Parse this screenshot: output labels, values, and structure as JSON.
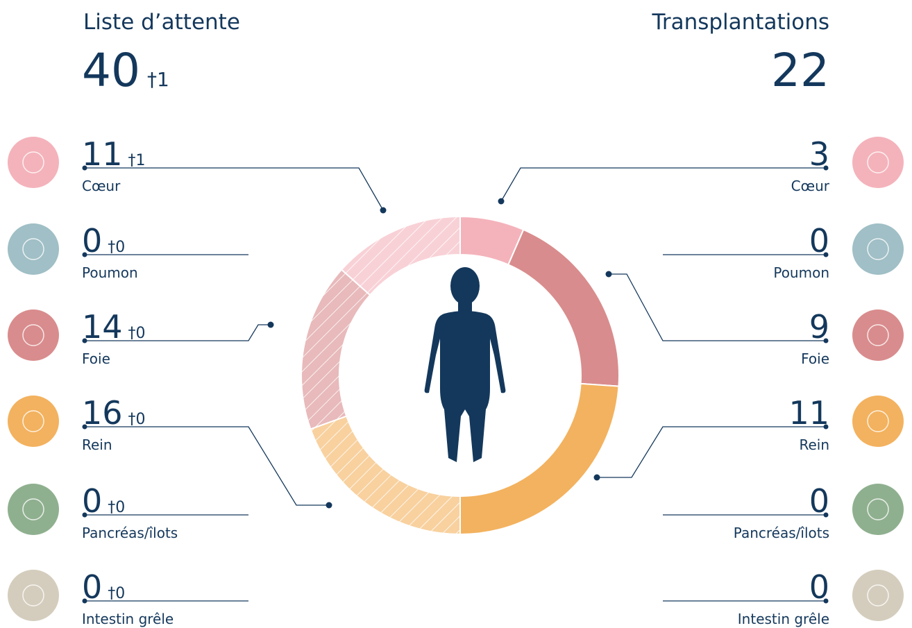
{
  "waiting_list": {
    "title": "Liste d’attente",
    "total": 40,
    "deaths": "†1",
    "organs": [
      {
        "name": "Cœur",
        "value": 11,
        "deaths": "†1",
        "color": "#f4b3bb"
      },
      {
        "name": "Poumon",
        "value": 0,
        "deaths": "†0",
        "color": "#a0bfc6"
      },
      {
        "name": "Foie",
        "value": 14,
        "deaths": "†0",
        "color": "#d98c8d"
      },
      {
        "name": "Rein",
        "value": 16,
        "deaths": "†0",
        "color": "#f3b25f"
      },
      {
        "name": "Pancréas/îlots",
        "value": 0,
        "deaths": "†0",
        "color": "#8fb08f"
      },
      {
        "name": "Intestin grêle",
        "value": 0,
        "deaths": "†0",
        "color": "#d4cdbd"
      }
    ]
  },
  "transplants": {
    "title": "Transplantations",
    "total": 22,
    "organs": [
      {
        "name": "Cœur",
        "value": 3,
        "color": "#f4b3bb"
      },
      {
        "name": "Poumon",
        "value": 0,
        "color": "#a0bfc6"
      },
      {
        "name": "Foie",
        "value": 9,
        "color": "#d98c8d"
      },
      {
        "name": "Rein",
        "value": 11,
        "color": "#f3b25f"
      },
      {
        "name": "Pancréas/îlots",
        "value": 0,
        "color": "#8fb08f"
      },
      {
        "name": "Intestin grêle",
        "value": 0,
        "color": "#d4cdbd"
      }
    ]
  }
}
